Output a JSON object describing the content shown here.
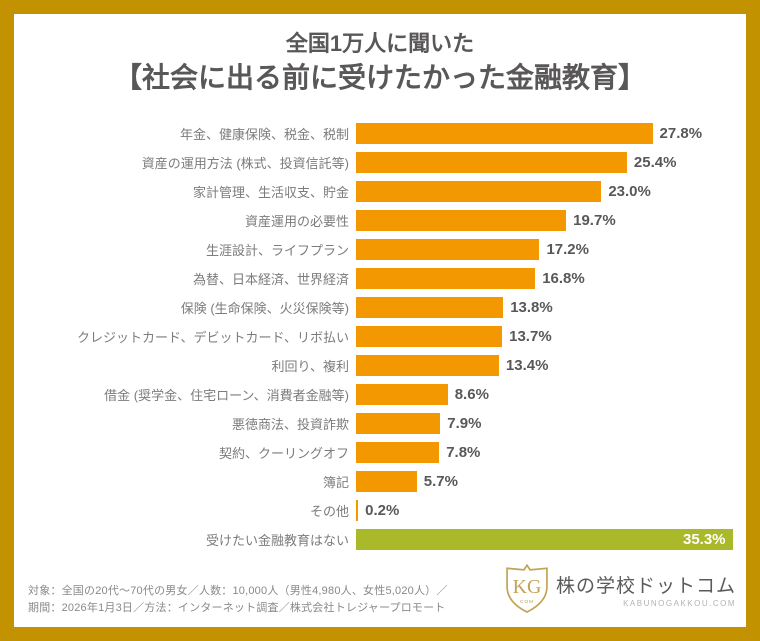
{
  "title": {
    "line1": "全国1万人に聞いた",
    "line2": "【社会に出る前に受けたかった金融教育】"
  },
  "chart_data": {
    "type": "bar",
    "orientation": "horizontal",
    "unit": "%",
    "xlim": [
      0,
      36
    ],
    "grid": false,
    "legend": false,
    "categories": [
      "年金、健康保険、税金、税制",
      "資産の運用方法 (株式、投資信託等)",
      "家計管理、生活収支、貯金",
      "資産運用の必要性",
      "生涯設計、ライフプラン",
      "為替、日本経済、世界経済",
      "保険 (生命保険、火災保険等)",
      "クレジットカード、デビットカード、リボ払い",
      "利回り、複利",
      "借金 (奨学金、住宅ローン、消費者金融等)",
      "悪徳商法、投資詐欺",
      "契約、クーリングオフ",
      "簿記",
      "その他",
      "受けたい金融教育はない"
    ],
    "values": [
      27.8,
      25.4,
      23.0,
      19.7,
      17.2,
      16.8,
      13.8,
      13.7,
      13.4,
      8.6,
      7.9,
      7.8,
      5.7,
      0.2,
      35.3
    ],
    "value_labels": [
      "27.8%",
      "25.4%",
      "23.0%",
      "19.7%",
      "17.2%",
      "16.8%",
      "13.8%",
      "13.7%",
      "13.4%",
      "8.6%",
      "7.9%",
      "7.8%",
      "5.7%",
      "0.2%",
      "35.3%"
    ],
    "highlight_index": 14,
    "bar_color_default": "#f39800",
    "bar_color_highlight": "#a9b92a"
  },
  "footer": {
    "note_line1": "対象：全国の20代〜70代の男女／人数：10,000人（男性4,980人、女性5,020人）／",
    "note_line2": "期間：2026年1月3日／方法：インターネット調査／株式会社トレジャープロモート",
    "logo": {
      "monogram": "KG",
      "monogram_sub": "COM",
      "name": "株の学校ドットコム",
      "domain": "KABUNOGAKKOU.COM"
    }
  },
  "colors": {
    "frame_border": "#c39200",
    "title_text": "#595757",
    "category_text": "#7d7b7b",
    "value_text": "#595757",
    "highlight_value_text": "#ffffff",
    "logo_gold": "#c3a254"
  }
}
